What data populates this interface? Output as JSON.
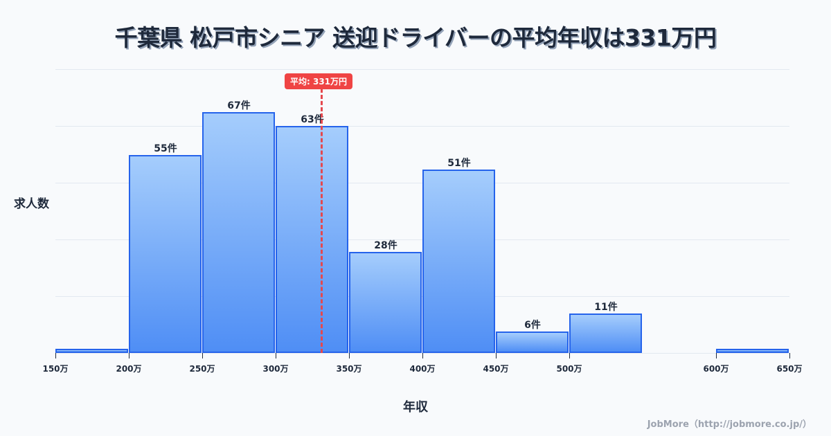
{
  "title": "千葉県 松戸市シニア 送迎ドライバーの平均年収は331万円",
  "footer": "JobMore（http://jobmore.co.jp/）",
  "mean_badge": "平均: 331万円",
  "chart_data": {
    "type": "bar",
    "title": "千葉県 松戸市シニア 送迎ドライバーの平均年収は331万円",
    "xlabel": "年収",
    "ylabel": "求人数",
    "categories": [
      "150-200万",
      "200-250万",
      "250-300万",
      "300-350万",
      "350-400万",
      "400-450万",
      "450-500万",
      "500-550万",
      "550-600万",
      "600-650万"
    ],
    "values": [
      1,
      55,
      67,
      63,
      28,
      51,
      6,
      11,
      0,
      1
    ],
    "labels": [
      "",
      "55件",
      "67件",
      "63件",
      "28件",
      "51件",
      "6件",
      "11件",
      "",
      ""
    ],
    "x_ticks": [
      "150万",
      "200万",
      "250万",
      "300万",
      "350万",
      "400万",
      "450万",
      "500万",
      "600万",
      "650万"
    ],
    "x_tick_values": [
      150,
      200,
      250,
      300,
      350,
      400,
      450,
      500,
      600,
      650
    ],
    "mean": 331,
    "mean_label": "平均: 331万円",
    "grid": true,
    "colors": {
      "bar_fill_top": "#a5cdfc",
      "bar_fill_bottom": "#4f8ef5",
      "bar_border": "#2563eb",
      "mean_line": "#ef4444"
    }
  }
}
